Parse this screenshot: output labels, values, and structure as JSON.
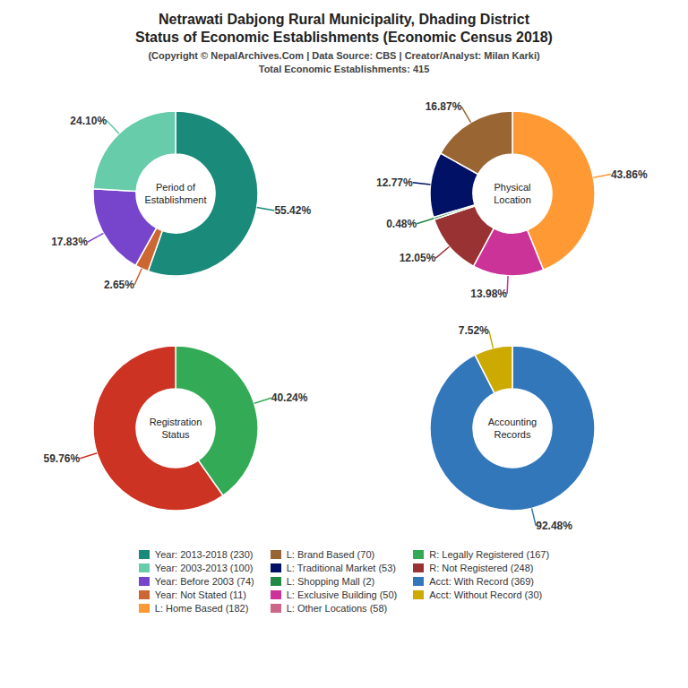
{
  "title": "Netrawati Dabjong Rural Municipality, Dhading District\nStatus of Economic Establishments (Economic Census 2018)",
  "subtitle": "(Copyright © NepalArchives.Com | Data Source: CBS | Creator/Analyst: Milan Karki)\nTotal Economic Establishments: 415",
  "chart_data": [
    {
      "type": "pie",
      "title": "Period of\nEstablishment",
      "values": [
        55.42,
        2.65,
        17.83,
        24.1
      ],
      "value_labels": [
        "55.42%",
        "2.65%",
        "17.83%",
        "24.10%"
      ],
      "colors": [
        "#1a8a7a",
        "#cc6633",
        "#7744cc",
        "#66ccaa"
      ],
      "data_labels": true
    },
    {
      "type": "pie",
      "title": "Physical\nLocation",
      "values": [
        43.86,
        13.98,
        12.05,
        0.48,
        12.77,
        16.87
      ],
      "value_labels": [
        "43.86%",
        "13.98%",
        "12.05%",
        "0.48%",
        "12.77%",
        "16.87%"
      ],
      "colors": [
        "#ff9933",
        "#cc3399",
        "#993333",
        "#228844",
        "#001166",
        "#996633"
      ],
      "data_labels": true
    },
    {
      "type": "pie",
      "title": "Registration\nStatus",
      "values": [
        40.24,
        59.76
      ],
      "value_labels": [
        "40.24%",
        "59.76%"
      ],
      "colors": [
        "#33aa55",
        "#cc3322"
      ],
      "data_labels": true
    },
    {
      "type": "pie",
      "title": "Accounting\nRecords",
      "values": [
        92.48,
        7.52
      ],
      "value_labels": [
        "92.48%",
        "7.52%"
      ],
      "colors": [
        "#3377bb",
        "#ccaa00"
      ],
      "data_labels": true
    }
  ],
  "legend_entries": [
    {
      "name": "Year: 2013-2018 (230)",
      "color": "#1a8a7a"
    },
    {
      "name": "Year: 2003-2013 (100)",
      "color": "#66ccaa"
    },
    {
      "name": "Year: Before 2003 (74)",
      "color": "#7744cc"
    },
    {
      "name": "Year: Not Stated (11)",
      "color": "#cc6633"
    },
    {
      "name": "L: Home Based (182)",
      "color": "#ff9933"
    },
    {
      "name": "L: Brand Based (70)",
      "color": "#996633"
    },
    {
      "name": "L: Traditional Market (53)",
      "color": "#001166"
    },
    {
      "name": "L: Shopping Mall (2)",
      "color": "#228844"
    },
    {
      "name": "L: Exclusive Building (50)",
      "color": "#cc3399"
    },
    {
      "name": "L: Other Locations (58)",
      "color": "#cc6688"
    },
    {
      "name": "R: Legally Registered (167)",
      "color": "#33aa55"
    },
    {
      "name": "R: Not Registered (248)",
      "color": "#993333"
    },
    {
      "name": "Acct: With Record (369)",
      "color": "#3377bb"
    },
    {
      "name": "Acct: Without Record (30)",
      "color": "#ccaa00"
    }
  ]
}
